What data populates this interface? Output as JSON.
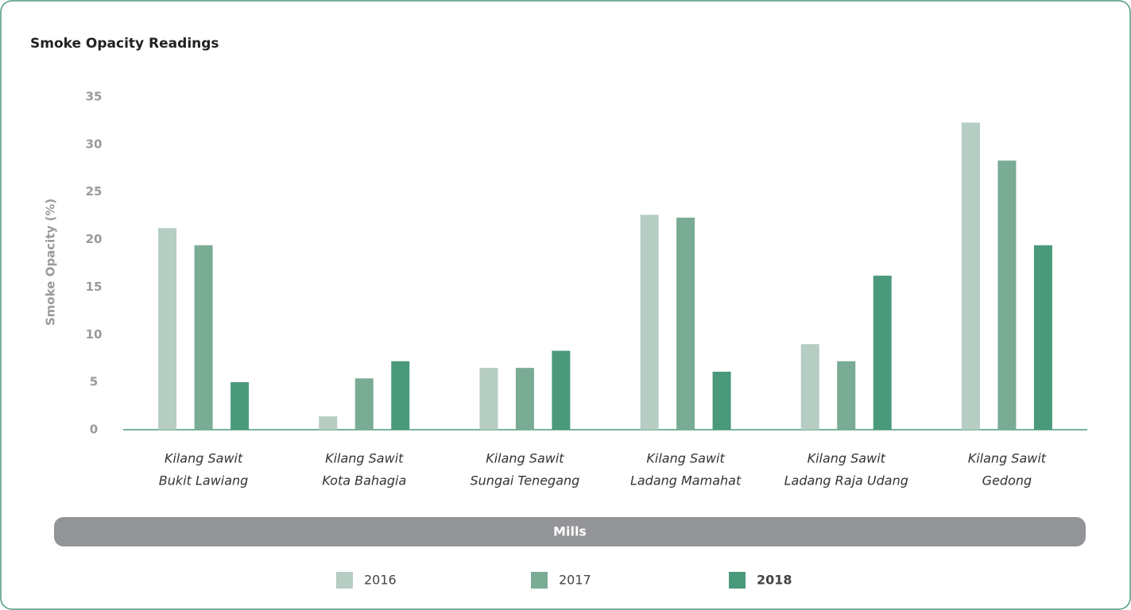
{
  "chart_data": {
    "type": "bar",
    "title": "Smoke Opacity Readings",
    "y_label": "Smoke Opacity (%)",
    "x_label": "Mills",
    "categories": [
      [
        "Kilang Sawit",
        "Bukit Lawiang"
      ],
      [
        "Kilang Sawit",
        "Kota Bahagia"
      ],
      [
        "Kilang Sawit",
        "Sungai Tenegang"
      ],
      [
        "Kilang Sawit",
        "Ladang Mamahat"
      ],
      [
        "Kilang Sawit",
        "Ladang Raja Udang"
      ],
      [
        "Kilang Sawit",
        "Gedong"
      ]
    ],
    "series": [
      {
        "name": "2016",
        "color": "#b5cdc2",
        "values": [
          21.2,
          1.4,
          6.5,
          22.6,
          9,
          32.3
        ]
      },
      {
        "name": "2017",
        "color": "#7aab95",
        "values": [
          19.4,
          5.4,
          6.5,
          22.3,
          7.2,
          28.3
        ]
      },
      {
        "name": "2018",
        "color": "#4b997b",
        "values": [
          5,
          7.2,
          8.3,
          6.1,
          16.2,
          19.4
        ]
      }
    ],
    "ylim": [
      0,
      35
    ],
    "yticks": [
      0,
      5,
      10,
      15,
      20,
      25,
      30,
      35
    ],
    "grid": false,
    "legend": "bottom"
  }
}
